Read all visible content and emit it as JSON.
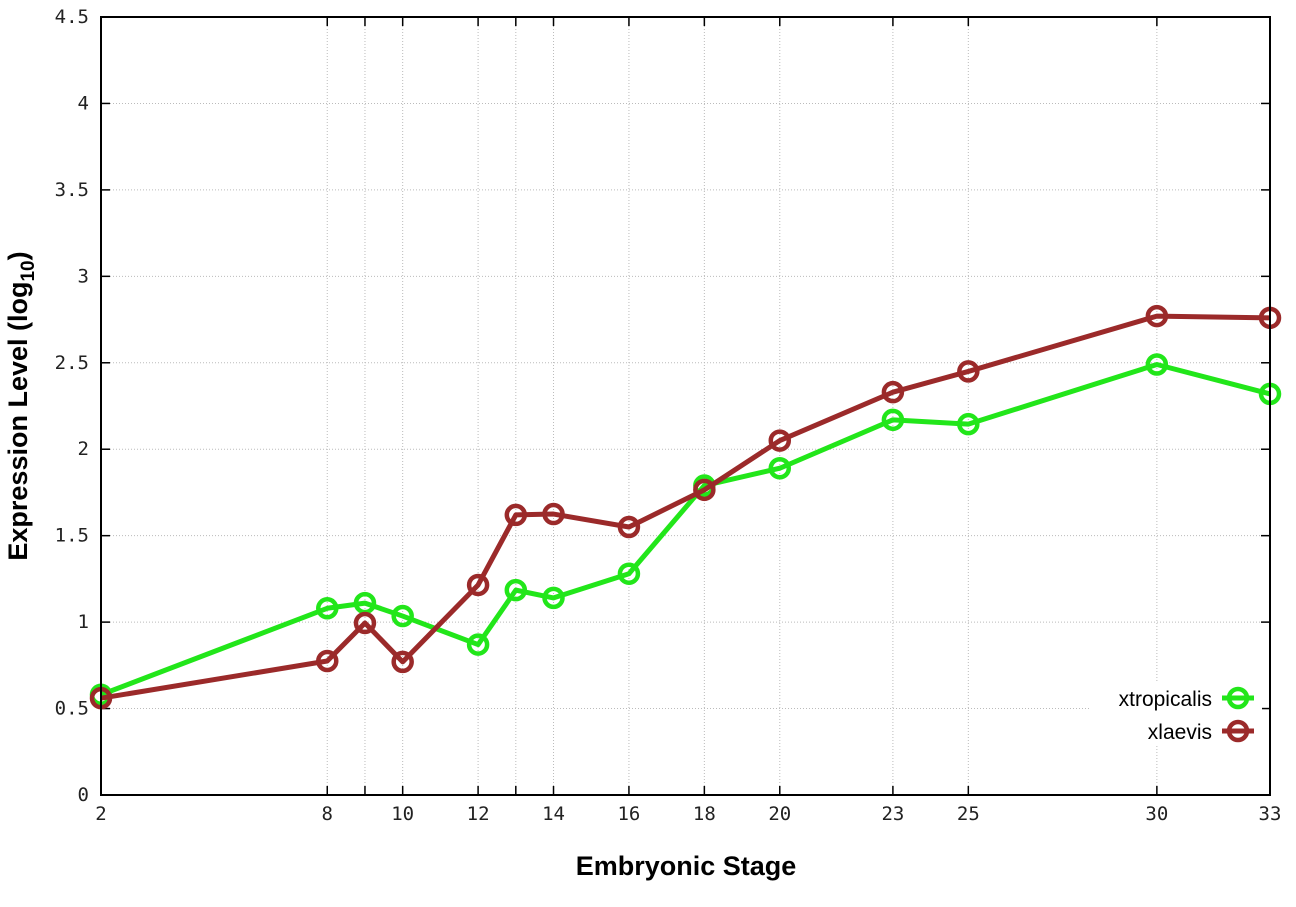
{
  "chart_data": {
    "type": "line",
    "title": "",
    "xlabel": "Embryonic Stage",
    "ylabel": "Expression Level (log",
    "ylabel_subscript": "10",
    "ylabel_suffix": ")",
    "xlim": [
      2,
      33
    ],
    "ylim": [
      0,
      4.5
    ],
    "grid": true,
    "legend_position": "bottom-right",
    "x_ticks": [
      2,
      8,
      9,
      10,
      12,
      13,
      14,
      16,
      18,
      20,
      23,
      25,
      30,
      33
    ],
    "x_tick_labels": [
      "2",
      "8",
      "",
      "10",
      "12",
      "",
      "14",
      "16",
      "18",
      "20",
      "23",
      "25",
      "30",
      "33"
    ],
    "y_ticks": [
      0,
      0.5,
      1,
      1.5,
      2,
      2.5,
      3,
      3.5,
      4,
      4.5
    ],
    "y_tick_labels": [
      "0",
      "0.5",
      "1",
      "1.5",
      "2",
      "2.5",
      "3",
      "3.5",
      "4",
      "4.5"
    ],
    "x": [
      2,
      8,
      9,
      10,
      12,
      13,
      14,
      16,
      18,
      20,
      23,
      25,
      30,
      33
    ],
    "series": [
      {
        "name": "xtropicalis",
        "color": "#22e61a",
        "values": [
          0.58,
          1.08,
          1.11,
          1.035,
          0.87,
          1.185,
          1.14,
          1.28,
          1.79,
          1.89,
          2.17,
          2.145,
          2.49,
          2.32
        ]
      },
      {
        "name": "xlaevis",
        "color": "#9b2a2a",
        "values": [
          0.56,
          0.775,
          0.995,
          0.77,
          1.215,
          1.62,
          1.625,
          1.55,
          1.765,
          2.05,
          2.33,
          2.45,
          2.77,
          2.76
        ]
      }
    ]
  }
}
